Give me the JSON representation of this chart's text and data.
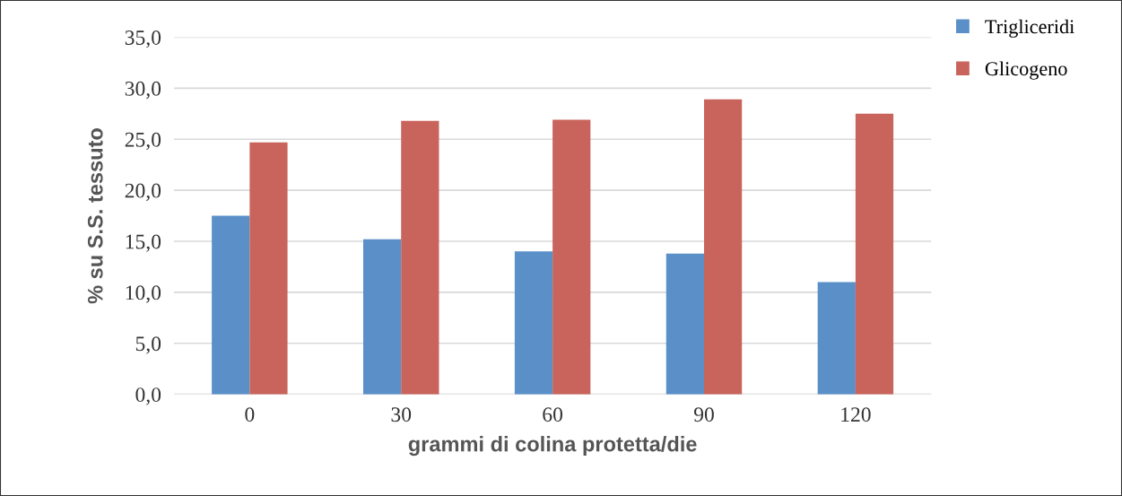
{
  "chart_data": {
    "type": "bar",
    "xlabel": "grammi di colina protetta/die",
    "ylabel": "% su S.S. tessuto",
    "categories": [
      "0",
      "30",
      "60",
      "90",
      "120"
    ],
    "series": [
      {
        "name": "Trigliceridi",
        "color": "#5a8fc8",
        "values": [
          17.5,
          15.2,
          14.0,
          13.8,
          11.0
        ]
      },
      {
        "name": "Glicogeno",
        "color": "#c9645d",
        "values": [
          24.7,
          26.8,
          26.9,
          28.9,
          27.5
        ]
      }
    ],
    "ylim": [
      0,
      35
    ],
    "yticks": [
      {
        "value": 0,
        "label": "0,0"
      },
      {
        "value": 5,
        "label": "5,0"
      },
      {
        "value": 10,
        "label": "10,0"
      },
      {
        "value": 15,
        "label": "15,0"
      },
      {
        "value": 20,
        "label": "20,0"
      },
      {
        "value": 25,
        "label": "25,0"
      },
      {
        "value": 30,
        "label": "30,0"
      },
      {
        "value": 35,
        "label": "35,0"
      }
    ],
    "grid": "y",
    "legend": "top right"
  }
}
